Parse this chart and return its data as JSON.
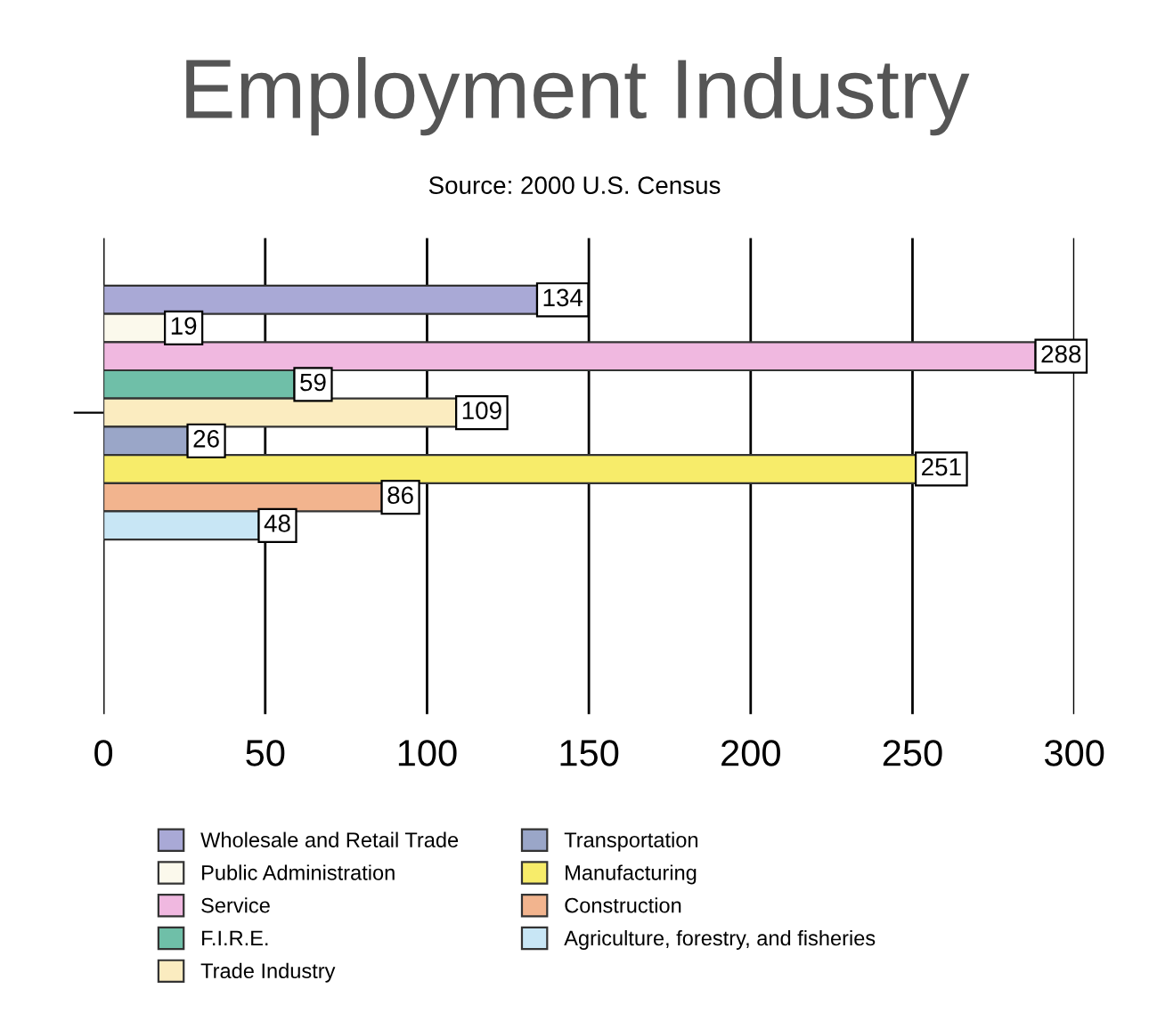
{
  "chart_data": {
    "type": "bar",
    "orientation": "horizontal",
    "title": "Employment Industry",
    "subtitle": "Source: 2000 U.S. Census",
    "categories": [
      null
    ],
    "series": [
      {
        "name": "Wholesale and Retail Trade",
        "color": "#a9a9d6",
        "values": [
          134
        ]
      },
      {
        "name": "Public Administration",
        "color": "#fbf9ec",
        "values": [
          19
        ]
      },
      {
        "name": "Service",
        "color": "#f0b8e0",
        "values": [
          288
        ]
      },
      {
        "name": "F.I.R.E.",
        "color": "#6fbfa8",
        "values": [
          59
        ]
      },
      {
        "name": "Trade Industry",
        "color": "#fbecc0",
        "values": [
          109
        ]
      },
      {
        "name": "Transportation",
        "color": "#9aa6c8",
        "values": [
          26
        ]
      },
      {
        "name": "Manufacturing",
        "color": "#f7ec6a",
        "values": [
          251
        ]
      },
      {
        "name": "Construction",
        "color": "#f2b48e",
        "values": [
          86
        ]
      },
      {
        "name": "Agriculture, forestry, and fisheries",
        "color": "#c8e6f5",
        "values": [
          48
        ]
      }
    ],
    "xlim": [
      0,
      300
    ],
    "xticks": [
      0,
      50,
      100,
      150,
      200,
      250,
      300
    ],
    "grid": "x",
    "legend": "bottom",
    "data_labels": true
  }
}
